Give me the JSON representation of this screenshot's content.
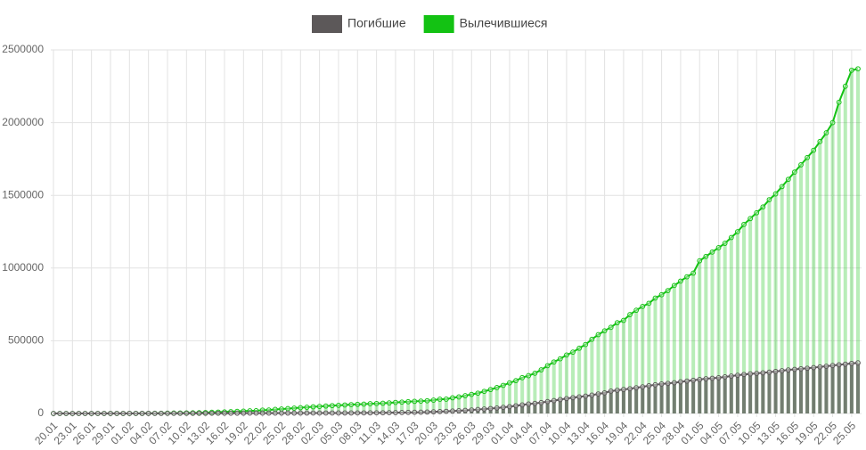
{
  "chart_data": {
    "type": "bar",
    "line_overlay": true,
    "grid": true,
    "legend": "top",
    "categories": [
      "20.01",
      null,
      null,
      "23.01",
      null,
      null,
      "26.01",
      null,
      null,
      "29.01",
      null,
      null,
      "01.02",
      null,
      null,
      "04.02",
      null,
      null,
      "07.02",
      null,
      null,
      "10.02",
      null,
      null,
      "13.02",
      null,
      null,
      "16.02",
      null,
      null,
      "19.02",
      null,
      null,
      "22.02",
      null,
      null,
      "25.02",
      null,
      null,
      "28.02",
      null,
      null,
      "02.03",
      null,
      null,
      "05.03",
      null,
      null,
      "08.03",
      null,
      null,
      "11.03",
      null,
      null,
      "14.03",
      null,
      null,
      "17.03",
      null,
      null,
      "20.03",
      null,
      null,
      "23.03",
      null,
      null,
      "26.03",
      null,
      null,
      "29.03",
      null,
      null,
      "01.04",
      null,
      null,
      "04.04",
      null,
      null,
      "07.04",
      null,
      null,
      "10.04",
      null,
      null,
      "13.04",
      null,
      null,
      "16.04",
      null,
      null,
      "19.04",
      null,
      null,
      "22.04",
      null,
      null,
      "25.04",
      null,
      null,
      "28.04",
      null,
      null,
      "01.05",
      null,
      null,
      "04.05",
      null,
      null,
      "07.05",
      null,
      null,
      "10.05",
      null,
      null,
      "13.05",
      null,
      null,
      "16.05",
      null,
      null,
      "19.05",
      null,
      null,
      "22.05",
      null,
      null,
      "25.05",
      null
    ],
    "series": [
      {
        "name": "Вылечившиеся",
        "color": "#13c213",
        "values": [
          0,
          0,
          28,
          30,
          36,
          39,
          49,
          58,
          101,
          120,
          135,
          214,
          275,
          463,
          614,
          843,
          1115,
          1476,
          1998,
          2595,
          3218,
          3917,
          4635,
          5079,
          6213,
          7973,
          9294,
          10748,
          12455,
          14210,
          15953,
          18014,
          18704,
          22699,
          23394,
          27911,
          30386,
          33277,
          36711,
          39782,
          42716,
          45602,
          48228,
          51170,
          53796,
          55865,
          58358,
          60694,
          62494,
          64404,
          67003,
          68324,
          70251,
          72624,
          76034,
          78088,
          80840,
          83312,
          84975,
          87420,
          91692,
          97899,
          98351,
          107890,
          113604,
          122203,
          130915,
          139415,
          151766,
          164566,
          178034,
          193177,
          210263,
          225796,
          246152,
          260012,
          276515,
          300054,
          328661,
          353975,
          376096,
          402110,
          421722,
          448655,
          474261,
          510159,
          542107,
          568343,
          592319,
          623903,
          640198,
          679819,
          709694,
          736110,
          757688,
          793500,
          816685,
          845000,
          880000,
          910000,
          940000,
          965000,
          1050000,
          1080000,
          1110000,
          1140000,
          1170000,
          1210000,
          1250000,
          1300000,
          1340000,
          1380000,
          1420000,
          1470000,
          1510000,
          1560000,
          1610000,
          1660000,
          1710000,
          1760000,
          1810000,
          1870000,
          1930000,
          2000000,
          2140000,
          2250000,
          2360000,
          2370000
        ]
      },
      {
        "name": "Погибшие",
        "color": "#5c5859",
        "values": [
          6,
          6,
          17,
          18,
          26,
          42,
          56,
          82,
          131,
          133,
          171,
          213,
          259,
          362,
          426,
          492,
          564,
          634,
          719,
          806,
          906,
          1013,
          1113,
          1118,
          1371,
          1523,
          1666,
          1770,
          1868,
          2007,
          2122,
          2247,
          2251,
          2458,
          2469,
          2629,
          2708,
          2770,
          2814,
          2872,
          2941,
          2996,
          3085,
          3160,
          3254,
          3348,
          3460,
          3558,
          3803,
          3996,
          4262,
          4615,
          4720,
          5404,
          5819,
          6440,
          7126,
          7905,
          8733,
          9867,
          11299,
          12973,
          14651,
          16505,
          18625,
          21181,
          23970,
          27198,
          30652,
          33925,
          37582,
          42107,
          46809,
          52983,
          58787,
          64606,
          69374,
          74565,
          81865,
          88338,
          95455,
          102525,
          108503,
          114091,
          119481,
          125983,
          134176,
          141889,
          153822,
          159510,
          165044,
          169986,
          176583,
          183027,
          190858,
          197159,
          202846,
          206544,
          211167,
          217153,
          222699,
          228239,
          233388,
          238650,
          242103,
          245755,
          251537,
          257239,
          262707,
          268286,
          272247,
          275751,
          279311,
          283734,
          288934,
          294046,
          299137,
          303351,
          307217,
          310832,
          315185,
          320186,
          324549,
          329721,
          334621,
          339000,
          344000,
          348000
        ]
      }
    ],
    "legend_order": [
      1,
      0
    ],
    "ylim": [
      0,
      2500000
    ],
    "yticks": [
      0,
      500000,
      1000000,
      1500000,
      2000000,
      2500000
    ]
  }
}
